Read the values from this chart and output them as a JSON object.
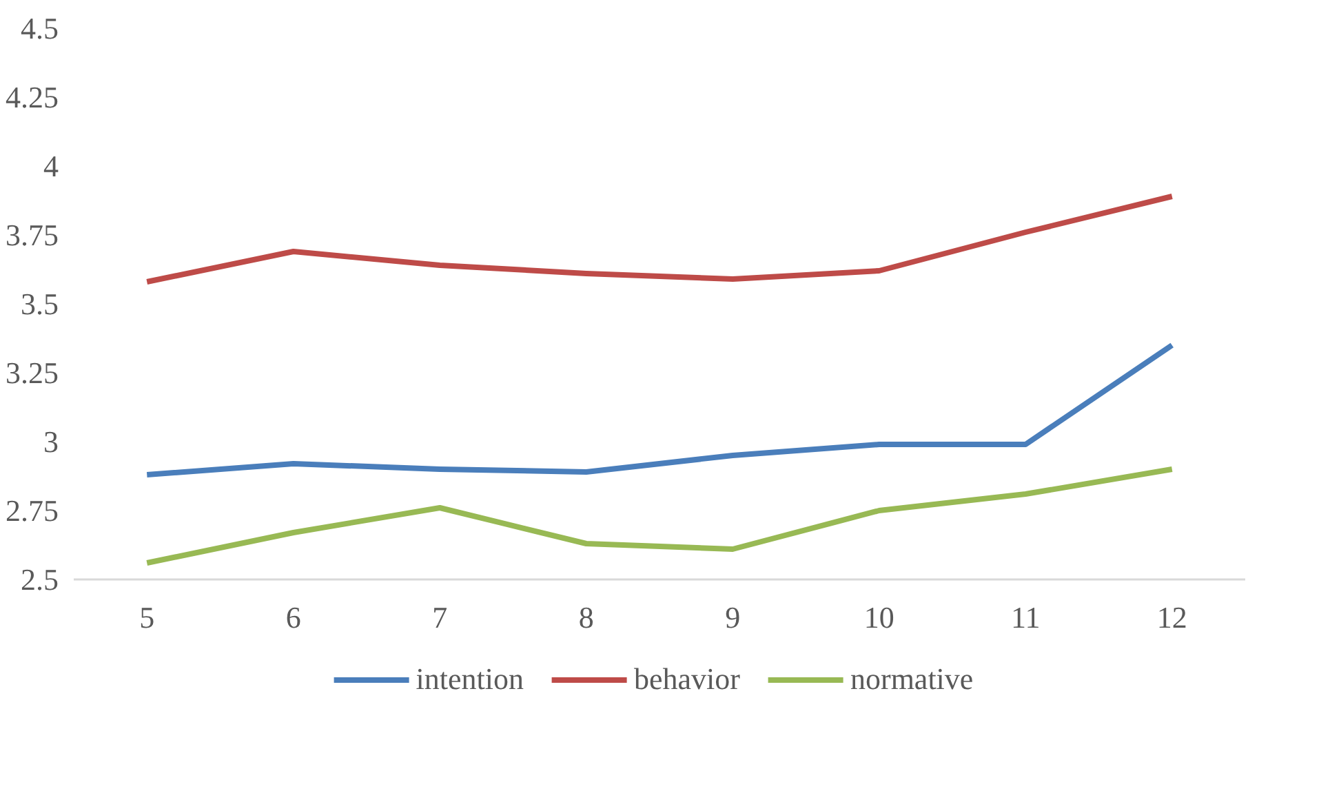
{
  "chart_data": {
    "type": "line",
    "categories": [
      "5",
      "6",
      "7",
      "8",
      "9",
      "10",
      "11",
      "12"
    ],
    "series": [
      {
        "name": "intention",
        "color": "#4a7ebb",
        "values": [
          2.88,
          2.92,
          2.9,
          2.89,
          2.95,
          2.99,
          2.99,
          3.35
        ]
      },
      {
        "name": "behavior",
        "color": "#be4b48",
        "values": [
          3.58,
          3.69,
          3.64,
          3.61,
          3.59,
          3.62,
          3.76,
          3.89
        ]
      },
      {
        "name": "normative",
        "color": "#98b954",
        "values": [
          2.56,
          2.67,
          2.76,
          2.63,
          2.61,
          2.75,
          2.81,
          2.9
        ]
      }
    ],
    "ylim": [
      2.5,
      4.5
    ],
    "yticks": [
      2.5,
      2.75,
      3,
      3.25,
      3.5,
      3.75,
      4,
      4.25,
      4.5
    ],
    "grid": false,
    "legend": "bottom",
    "marker": "none",
    "line_style": "solid"
  }
}
